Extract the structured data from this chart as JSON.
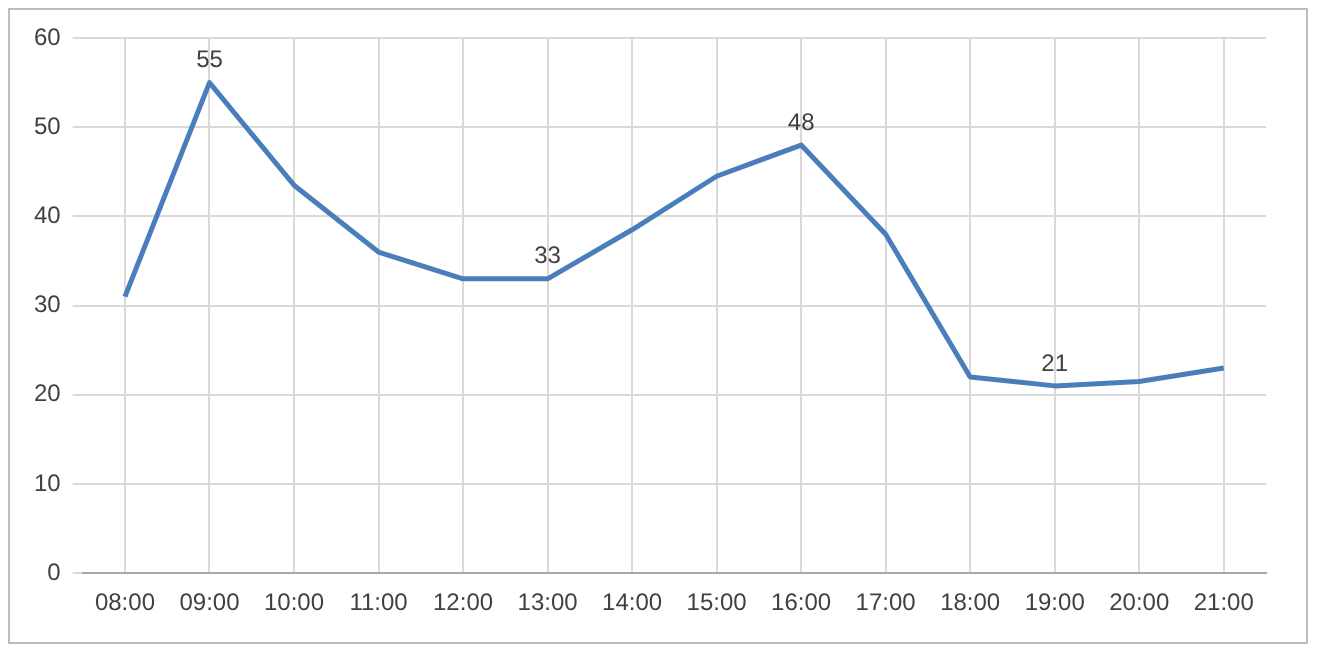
{
  "chart_data": {
    "type": "line",
    "categories": [
      "08:00",
      "09:00",
      "10:00",
      "11:00",
      "12:00",
      "13:00",
      "14:00",
      "15:00",
      "16:00",
      "17:00",
      "18:00",
      "19:00",
      "20:00",
      "21:00"
    ],
    "series": [
      {
        "color": "#4a7ebb",
        "values": [
          31,
          55,
          43.5,
          36,
          33,
          33,
          38.5,
          44.5,
          48,
          38,
          22,
          21,
          21.5,
          23
        ],
        "value_labels": [
          null,
          "55",
          null,
          null,
          null,
          "33",
          null,
          null,
          "48",
          null,
          null,
          "21",
          null,
          null
        ]
      }
    ],
    "ylim": [
      0,
      60
    ],
    "yticks": [
      0,
      10,
      20,
      30,
      40,
      50,
      60
    ],
    "grid": true,
    "marker": "none",
    "line_style": "solid"
  }
}
